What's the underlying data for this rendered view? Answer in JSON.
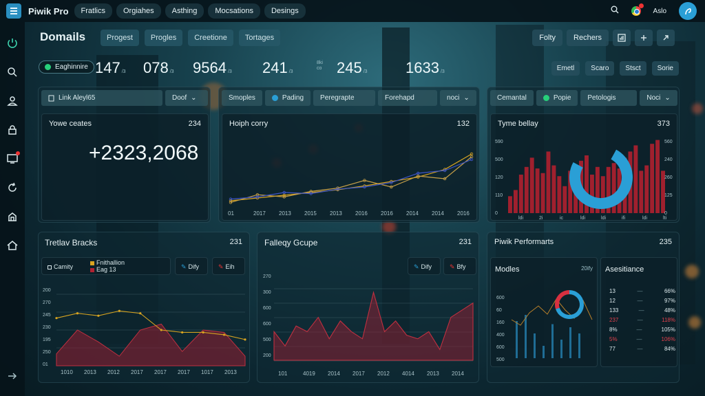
{
  "topbar": {
    "brand": "Piwik Pro",
    "nav": [
      "Fratlics",
      "Orgiahes",
      "Asthing",
      "Mocsations",
      "Desings"
    ],
    "user": "Aslo",
    "icons": [
      "menu-icon",
      "search-icon",
      "chrome-icon",
      "user-icon"
    ]
  },
  "sidebar": {
    "icons": [
      "power-icon",
      "search-icon",
      "user-icon",
      "lock-icon",
      "monitor-icon",
      "refresh-icon",
      "building-icon",
      "home-icon",
      "arrow-right-icon"
    ]
  },
  "header": {
    "title": "Domails",
    "tabs": [
      "Progest",
      "Progles",
      "Creetione",
      "Tortages"
    ],
    "right_buttons": [
      "Folty",
      "Rechers"
    ]
  },
  "stats": {
    "pill": "Eaghinnire",
    "values": [
      "147",
      "078",
      "9564",
      "241",
      "245",
      "1633"
    ],
    "buttons": [
      "Emetl",
      "Scaro",
      "Stsct",
      "Sorie"
    ]
  },
  "panel1": {
    "toolbar_label": "Link Aleyl65",
    "toolbar_select": "Doof",
    "card_title": "Yowe ceates",
    "card_value": "234",
    "big_number": "+2323,2068"
  },
  "panel2": {
    "toolbar": [
      "Smoples",
      "Pading",
      "Peregrapte",
      "Forehapd",
      "noci"
    ],
    "card_title": "Hoiph corry",
    "card_value": "132",
    "x_labels": [
      "01",
      "2017",
      "2013",
      "2015",
      "2013",
      "2016",
      "2016",
      "2014",
      "2014",
      "2016"
    ]
  },
  "panel3": {
    "toolbar": [
      "Cemantal",
      "Popie",
      "Petologis",
      "Noci"
    ],
    "card_title": "Tyme bellay",
    "card_value": "373",
    "y_labels_left": [
      "590",
      "500",
      "120",
      "110",
      "0"
    ],
    "y_labels_right": [
      "560",
      "240",
      "260",
      "125",
      "0"
    ],
    "x_labels": [
      "ldi",
      "2i",
      "ic",
      "ldi",
      "ldi",
      "ifi",
      "ldi",
      "lti"
    ]
  },
  "panel4": {
    "title": "Tretlav Bracks",
    "value": "231",
    "legend": [
      "Camity",
      "Fnithallion",
      "Eag 13",
      "Dify",
      "Eih"
    ],
    "y_labels": [
      "200",
      "270",
      "245",
      "230",
      "195",
      "250",
      "01"
    ],
    "x_labels": [
      "1010",
      "2013",
      "2012",
      "2017",
      "2017",
      "2017",
      "1017",
      "2013"
    ]
  },
  "panel5": {
    "title": "Falleqy Gcupe",
    "value": "231",
    "legend": [
      "Dify",
      "Bfy"
    ],
    "y_labels": [
      "270",
      "300",
      "600",
      "600",
      "500",
      "200"
    ],
    "x_labels": [
      "101",
      "4019",
      "2014",
      "2017",
      "2012",
      "4014",
      "2013",
      "2014"
    ]
  },
  "panel6": {
    "title": "Piwik Performarts",
    "value": "235",
    "sub_left": "Modles",
    "sub_left_value": "20ify",
    "sub_right": "Asesitiance",
    "y_labels": [
      "600",
      "60",
      "160",
      "400",
      "600",
      "500"
    ],
    "rows": [
      {
        "a": "13",
        "b": "66%"
      },
      {
        "a": "12",
        "b": "97%"
      },
      {
        "a": "133",
        "b": "48%"
      },
      {
        "a": "237",
        "b": "118%"
      },
      {
        "a": "8%",
        "b": "105%"
      },
      {
        "a": "5%",
        "b": "106%"
      },
      {
        "a": "77",
        "b": "84%"
      }
    ]
  },
  "colors": {
    "accent": "#2a9fd6",
    "green": "#27d07a",
    "red": "#b02232",
    "gold": "#d9a520",
    "blue_line": "#3d55c8"
  },
  "chart_data": [
    {
      "type": "line",
      "title": "Hoiph corry",
      "categories": [
        "01",
        "2017",
        "2013",
        "2015",
        "2013",
        "2016",
        "2016",
        "2014",
        "2014",
        "2016"
      ],
      "series": [
        {
          "values": [
            5,
            10,
            15,
            20,
            25,
            32,
            40,
            48,
            62,
            90
          ]
        },
        {
          "values": [
            2,
            16,
            12,
            22,
            28,
            42,
            30,
            50,
            45,
            85
          ]
        },
        {
          "values": [
            8,
            12,
            20,
            18,
            26,
            30,
            38,
            55,
            60,
            80
          ]
        }
      ]
    },
    {
      "type": "bar",
      "title": "Tyme bellay",
      "values": [
        22,
        30,
        50,
        60,
        72,
        58,
        52,
        80,
        62,
        48,
        35,
        55,
        45,
        68,
        75,
        50,
        60,
        48,
        60,
        65,
        58,
        72,
        80,
        88,
        55,
        62,
        90,
        95,
        55
      ]
    },
    {
      "type": "pie",
      "title": "Tyme bellay",
      "slices": [
        {
          "value": 75
        },
        {
          "value": 25
        }
      ]
    },
    {
      "type": "area",
      "title": "Tretlav Bracks",
      "series": [
        {
          "name": "Fnithallion",
          "values": [
            40,
            44,
            42,
            46,
            44,
            30,
            28,
            28,
            26,
            22
          ]
        },
        {
          "name": "Eag 13",
          "values": [
            10,
            30,
            20,
            8,
            30,
            35,
            12,
            30,
            28,
            8
          ]
        }
      ]
    },
    {
      "type": "area",
      "title": "Falleqy Gcupe",
      "values": [
        40,
        20,
        48,
        40,
        60,
        30,
        55,
        40,
        30,
        95,
        40,
        55,
        35,
        30,
        40,
        15,
        60,
        70,
        80
      ]
    },
    {
      "type": "bar",
      "title": "Modles",
      "values": [
        60,
        70,
        40,
        20,
        55,
        30,
        50,
        40
      ]
    },
    {
      "type": "pie",
      "title": "Modles",
      "slices": [
        {
          "value": 70
        },
        {
          "value": 30
        }
      ]
    }
  ]
}
